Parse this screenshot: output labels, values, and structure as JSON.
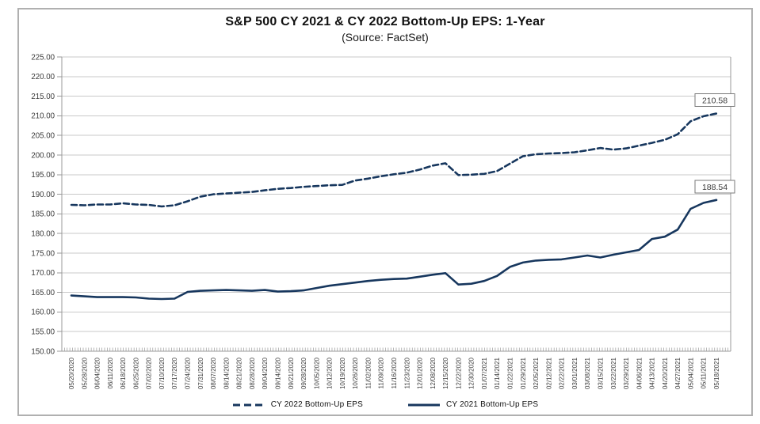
{
  "chart_data": {
    "type": "line",
    "title": "S&P 500 CY 2021 & CY 2022 Bottom-Up EPS: 1-Year",
    "subtitle": "(Source: FactSet)",
    "grid": true,
    "legend_position": "bottom",
    "ylim": [
      150,
      225
    ],
    "y_tick_step": 5,
    "colors": {
      "line": "#17375E",
      "grid": "#c9c9c9",
      "axis": "#999999",
      "minor_tick": "#9a9a9a",
      "label_text": "#3a3a3a",
      "end_box_border": "#7a7a7a",
      "end_box_fill": "#ffffff"
    },
    "x_labels": [
      "05/20/2020",
      "05/28/2020",
      "06/04/2020",
      "06/11/2020",
      "06/18/2020",
      "06/25/2020",
      "07/02/2020",
      "07/10/2020",
      "07/17/2020",
      "07/24/2020",
      "07/31/2020",
      "08/07/2020",
      "08/14/2020",
      "08/21/2020",
      "08/28/2020",
      "09/04/2020",
      "09/14/2020",
      "09/21/2020",
      "09/28/2020",
      "10/05/2020",
      "10/12/2020",
      "10/19/2020",
      "10/26/2020",
      "11/02/2020",
      "11/09/2020",
      "11/16/2020",
      "11/23/2020",
      "12/01/2020",
      "12/08/2020",
      "12/15/2020",
      "12/22/2020",
      "12/30/2020",
      "01/07/2021",
      "01/14/2021",
      "01/22/2021",
      "01/29/2021",
      "02/05/2021",
      "02/12/2021",
      "02/22/2021",
      "03/01/2021",
      "03/08/2021",
      "03/15/2021",
      "03/22/2021",
      "03/29/2021",
      "04/06/2021",
      "04/13/2021",
      "04/20/2021",
      "04/27/2021",
      "05/04/2021",
      "05/11/2021",
      "05/18/2021"
    ],
    "series": [
      {
        "name": "CY 2022 Bottom-Up EPS",
        "style": "dashed",
        "end_label": "210.58",
        "values": [
          187.3,
          187.2,
          187.4,
          187.4,
          187.7,
          187.4,
          187.3,
          186.9,
          187.2,
          188.2,
          189.4,
          190.0,
          190.2,
          190.4,
          190.6,
          191.0,
          191.4,
          191.6,
          191.9,
          192.1,
          192.3,
          192.4,
          193.5,
          194.0,
          194.6,
          195.1,
          195.5,
          196.3,
          197.3,
          197.9,
          194.9,
          195.0,
          195.2,
          195.9,
          197.8,
          199.7,
          200.2,
          200.4,
          200.5,
          200.7,
          201.2,
          201.8,
          201.4,
          201.7,
          202.4,
          203.1,
          203.9,
          205.3,
          208.6,
          209.9,
          210.58
        ]
      },
      {
        "name": "CY 2021 Bottom-Up EPS",
        "style": "solid",
        "end_label": "188.54",
        "values": [
          164.2,
          164.0,
          163.8,
          163.8,
          163.8,
          163.7,
          163.4,
          163.3,
          163.4,
          165.1,
          165.4,
          165.5,
          165.6,
          165.5,
          165.4,
          165.6,
          165.2,
          165.3,
          165.5,
          166.1,
          166.7,
          167.1,
          167.5,
          167.9,
          168.2,
          168.4,
          168.5,
          169.0,
          169.5,
          169.9,
          167.0,
          167.2,
          167.9,
          169.2,
          171.5,
          172.6,
          173.1,
          173.3,
          173.4,
          173.9,
          174.4,
          173.9,
          174.6,
          175.2,
          175.8,
          178.6,
          179.2,
          181.0,
          186.3,
          187.8,
          188.54
        ]
      }
    ]
  }
}
